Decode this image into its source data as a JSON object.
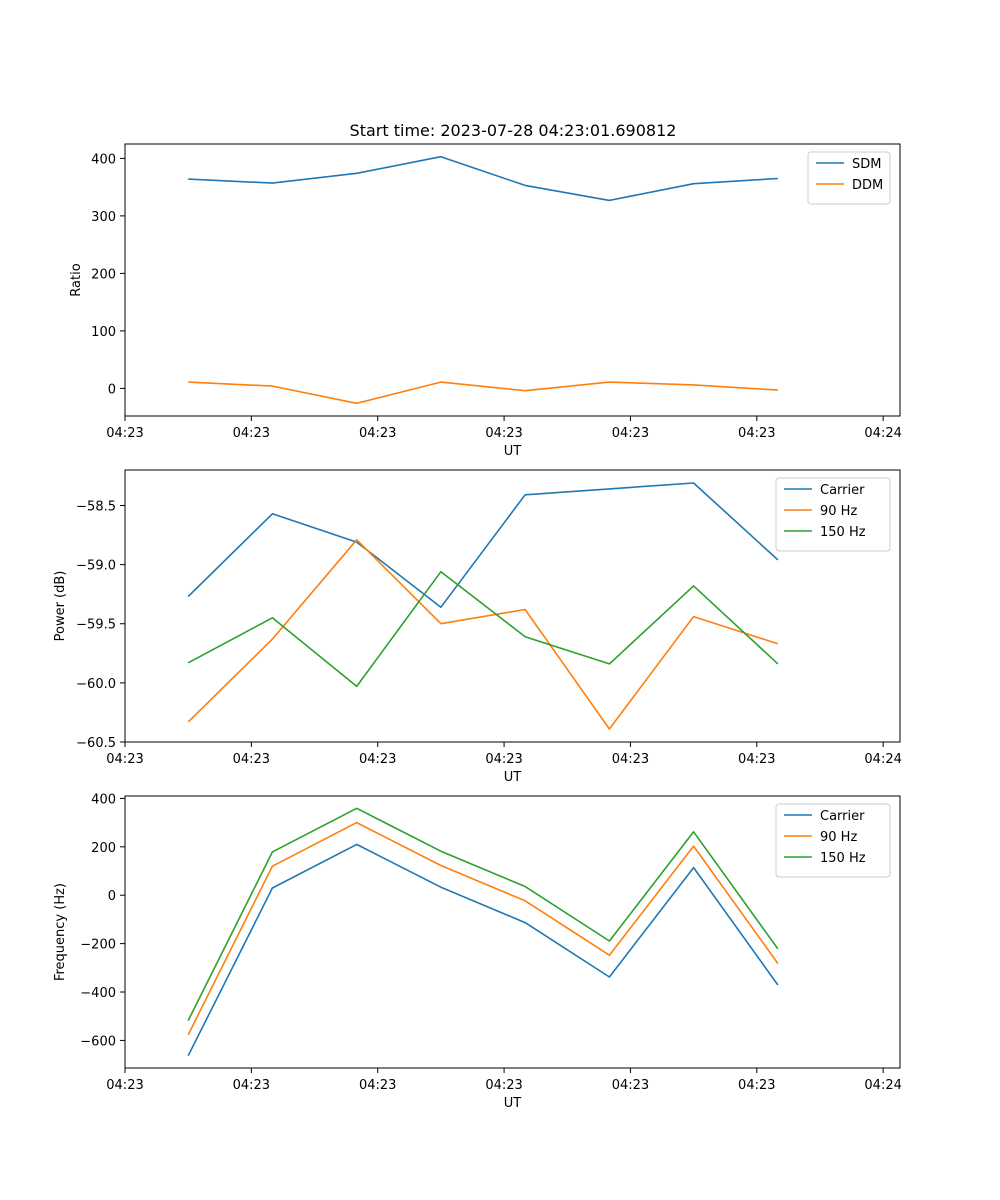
{
  "figure_title": "Start time: 2023-07-28 04:23:01.690812",
  "chart_data": [
    {
      "type": "line",
      "title": "Start time: 2023-07-28 04:23:01.690812",
      "xlabel": "UT",
      "ylabel": "Ratio",
      "ylim": [
        -48,
        425
      ],
      "xlim": [
        -0.75,
        8.45
      ],
      "x": [
        0,
        1,
        2,
        3,
        4,
        5,
        6,
        7
      ],
      "x_ticks": [
        -0.75,
        0.75,
        2.25,
        3.75,
        5.25,
        6.75,
        8.25
      ],
      "x_tick_labels": [
        "04:23",
        "04:23",
        "04:23",
        "04:23",
        "04:23",
        "04:23",
        "04:24"
      ],
      "y_ticks": [
        0,
        100,
        200,
        300,
        400
      ],
      "y_tick_labels": [
        "0",
        "100",
        "200",
        "300",
        "400"
      ],
      "legend_position": "top-right",
      "series": [
        {
          "name": "SDM",
          "color": "#1f77b4",
          "values": [
            364,
            357,
            374,
            403,
            353,
            327,
            356,
            365
          ]
        },
        {
          "name": "DDM",
          "color": "#ff7f0e",
          "values": [
            11,
            4,
            -26,
            11,
            -4,
            11,
            6,
            -3
          ]
        }
      ]
    },
    {
      "type": "line",
      "title": "",
      "xlabel": "UT",
      "ylabel": "Power (dB)",
      "ylim": [
        -60.5,
        -58.2
      ],
      "xlim": [
        -0.75,
        8.45
      ],
      "x": [
        0,
        1,
        2,
        3,
        4,
        5,
        6,
        7
      ],
      "x_ticks": [
        -0.75,
        0.75,
        2.25,
        3.75,
        5.25,
        6.75,
        8.25
      ],
      "x_tick_labels": [
        "04:23",
        "04:23",
        "04:23",
        "04:23",
        "04:23",
        "04:23",
        "04:24"
      ],
      "y_ticks": [
        -60.5,
        -60.0,
        -59.5,
        -59.0,
        -58.5
      ],
      "y_tick_labels": [
        "−60.5",
        "−60.0",
        "−59.5",
        "−59.0",
        "−58.5"
      ],
      "legend_position": "top-right",
      "series": [
        {
          "name": "Carrier",
          "color": "#1f77b4",
          "values": [
            -59.27,
            -58.57,
            -58.81,
            -59.36,
            -58.41,
            -58.36,
            -58.31,
            -58.96
          ]
        },
        {
          "name": "90 Hz",
          "color": "#ff7f0e",
          "values": [
            -60.33,
            -59.63,
            -58.79,
            -59.5,
            -59.38,
            -60.39,
            -59.44,
            -59.67
          ]
        },
        {
          "name": "150 Hz",
          "color": "#2ca02c",
          "values": [
            -59.83,
            -59.45,
            -60.03,
            -59.06,
            -59.61,
            -59.84,
            -59.18,
            -59.84
          ]
        }
      ]
    },
    {
      "type": "line",
      "title": "",
      "xlabel": "UT",
      "ylabel": "Frequency (Hz)",
      "ylim": [
        -714,
        410
      ],
      "xlim": [
        -0.75,
        8.45
      ],
      "x": [
        0,
        1,
        2,
        3,
        4,
        5,
        6,
        7
      ],
      "x_ticks": [
        -0.75,
        0.75,
        2.25,
        3.75,
        5.25,
        6.75,
        8.25
      ],
      "x_tick_labels": [
        "04:23",
        "04:23",
        "04:23",
        "04:23",
        "04:23",
        "04:23",
        "04:24"
      ],
      "y_ticks": [
        -600,
        -400,
        -200,
        0,
        200,
        400
      ],
      "y_tick_labels": [
        "−600",
        "−400",
        "−200",
        "0",
        "200",
        "400"
      ],
      "legend_position": "top-right",
      "series": [
        {
          "name": "Carrier",
          "color": "#1f77b4",
          "values": [
            -663,
            30,
            210,
            33,
            -113,
            -338,
            114,
            -371
          ]
        },
        {
          "name": "90 Hz",
          "color": "#ff7f0e",
          "values": [
            -577,
            120,
            300,
            123,
            -23,
            -248,
            203,
            -282
          ]
        },
        {
          "name": "150 Hz",
          "color": "#2ca02c",
          "values": [
            -518,
            179,
            359,
            182,
            36,
            -189,
            262,
            -222
          ]
        }
      ]
    }
  ]
}
